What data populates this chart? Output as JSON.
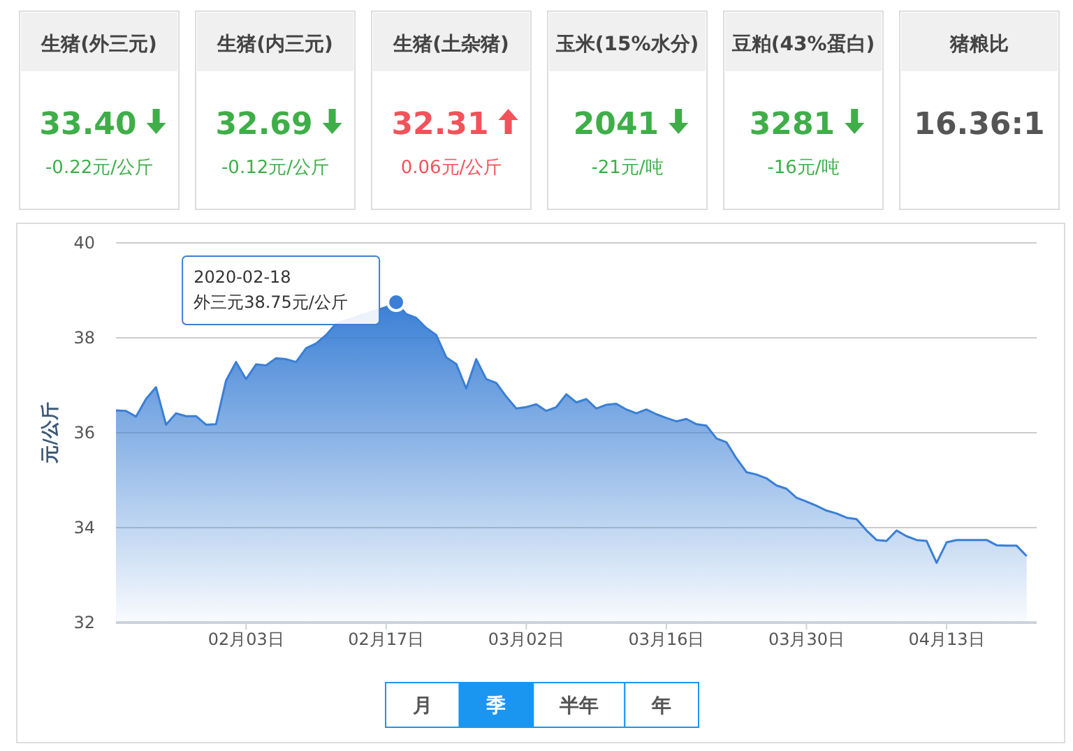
{
  "chart_data": [
    {
      "type": "other",
      "categories": [
        "生猪(外三元)",
        "生猪(内三元)",
        "生猪(土杂猪)",
        "玉米(15%水分)",
        "豆粕(43%蛋白)",
        "猪粮比"
      ],
      "value_labels": [
        "33.40",
        "32.69",
        "32.31",
        "2041",
        "3281",
        "16.36:1"
      ],
      "series": [
        {
          "values": [
            -0.22,
            -0.12,
            0.06,
            -21,
            -16,
            null
          ],
          "value_labels": [
            "-0.22元/公斤",
            "-0.12元/公斤",
            "0.06元/公斤",
            "-21元/吨",
            "-16元/吨",
            null
          ]
        }
      ]
    },
    {
      "type": "area",
      "ylabel": "元/公斤",
      "x": [
        "2020-01-21",
        "2020-01-22",
        "2020-01-23",
        "2020-01-24",
        "2020-01-25",
        "2020-01-26",
        "2020-01-27",
        "2020-01-28",
        "2020-01-29",
        "2020-01-30",
        "2020-01-31",
        "2020-02-01",
        "2020-02-02",
        "2020-02-03",
        "2020-02-04",
        "2020-02-05",
        "2020-02-06",
        "2020-02-07",
        "2020-02-08",
        "2020-02-09",
        "2020-02-10",
        "2020-02-11",
        "2020-02-12",
        "2020-02-13",
        "2020-02-14",
        "2020-02-15",
        "2020-02-16",
        "2020-02-17",
        "2020-02-18",
        "2020-02-19",
        "2020-02-20",
        "2020-02-21",
        "2020-02-22",
        "2020-02-23",
        "2020-02-24",
        "2020-02-25",
        "2020-02-26",
        "2020-02-27",
        "2020-02-28",
        "2020-02-29",
        "2020-03-01",
        "2020-03-02",
        "2020-03-03",
        "2020-03-04",
        "2020-03-05",
        "2020-03-06",
        "2020-03-07",
        "2020-03-08",
        "2020-03-09",
        "2020-03-10",
        "2020-03-11",
        "2020-03-12",
        "2020-03-13",
        "2020-03-14",
        "2020-03-15",
        "2020-03-16",
        "2020-03-17",
        "2020-03-18",
        "2020-03-19",
        "2020-03-20",
        "2020-03-21",
        "2020-03-22",
        "2020-03-23",
        "2020-03-24",
        "2020-03-25",
        "2020-03-26",
        "2020-03-27",
        "2020-03-28",
        "2020-03-29",
        "2020-03-30",
        "2020-03-31",
        "2020-04-01",
        "2020-04-02",
        "2020-04-03",
        "2020-04-04",
        "2020-04-05",
        "2020-04-06",
        "2020-04-07",
        "2020-04-08",
        "2020-04-09",
        "2020-04-10",
        "2020-04-11",
        "2020-04-12",
        "2020-04-13",
        "2020-04-14",
        "2020-04-15",
        "2020-04-16",
        "2020-04-17",
        "2020-04-18",
        "2020-04-19",
        "2020-04-20",
        "2020-04-21"
      ],
      "series": [
        {
          "color": "#3a7fd5",
          "values": [
            36.47,
            36.46,
            36.34,
            36.71,
            36.96,
            36.17,
            36.41,
            36.35,
            36.35,
            36.17,
            36.18,
            37.1,
            37.49,
            37.13,
            37.44,
            37.42,
            37.57,
            37.55,
            37.49,
            37.78,
            37.88,
            38.06,
            38.3,
            null,
            null,
            null,
            null,
            38.65,
            38.75,
            38.5,
            38.42,
            38.21,
            38.06,
            37.59,
            37.45,
            36.93,
            37.55,
            37.13,
            37.05,
            36.76,
            36.51,
            36.54,
            36.6,
            36.46,
            36.54,
            36.81,
            36.64,
            36.71,
            36.51,
            36.59,
            36.61,
            36.49,
            36.41,
            36.49,
            36.39,
            36.31,
            36.24,
            36.29,
            36.18,
            36.15,
            35.88,
            35.8,
            35.46,
            35.17,
            35.12,
            35.04,
            34.89,
            34.82,
            34.63,
            34.55,
            34.46,
            34.36,
            34.3,
            34.21,
            34.18,
            33.94,
            33.74,
            33.72,
            33.94,
            33.82,
            33.74,
            33.72,
            33.26,
            33.69,
            33.74,
            33.74,
            33.74,
            33.74,
            33.63,
            33.62,
            33.62,
            33.4
          ]
        }
      ],
      "xlim": [
        "2020-01-21",
        "2020-04-22"
      ],
      "xticks": [
        {
          "value": "2020-02-03",
          "label": "02月03日"
        },
        {
          "value": "2020-02-17",
          "label": "02月17日"
        },
        {
          "value": "2020-03-02",
          "label": "03月02日"
        },
        {
          "value": "2020-03-16",
          "label": "03月16日"
        },
        {
          "value": "2020-03-30",
          "label": "03月30日"
        },
        {
          "value": "2020-04-13",
          "label": "04月13日"
        }
      ],
      "ylim": [
        32,
        40
      ],
      "yticks": [
        32,
        34,
        36,
        38,
        40
      ],
      "grid": "y",
      "annotations": [
        {
          "text": "2020-02-18\n外三元38.75元/公斤",
          "x": "2020-02-18",
          "y": 38.75
        }
      ]
    },
    {
      "type": "other",
      "categories": [
        "月",
        "季",
        "半年",
        "年"
      ],
      "colors": [
        "#ffffff",
        "#1a96f0",
        "#ffffff",
        "#ffffff"
      ]
    }
  ]
}
